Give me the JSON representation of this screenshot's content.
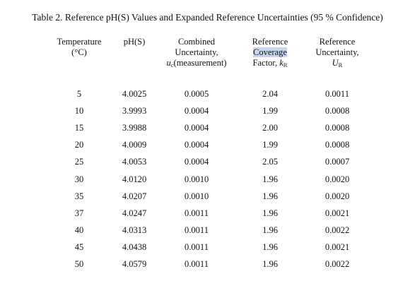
{
  "caption": "Table 2.  Reference pH(S) Values and Expanded Reference Uncertainties (95 % Confidence)",
  "headers": {
    "temperature": [
      "Temperature",
      "(°C)"
    ],
    "phs": [
      "pH(S)"
    ],
    "combined": [
      "Combined",
      "Uncertainty,",
      "(measurement)"
    ],
    "combined_symbol": "u",
    "combined_symbol_sub": "c",
    "coverage": [
      "Reference",
      "Coverage",
      "Factor, "
    ],
    "coverage_symbol": "k",
    "coverage_symbol_sub": "R",
    "expanded": [
      "Reference",
      "Uncertainty,"
    ],
    "expanded_symbol": "U",
    "expanded_symbol_sub": "R"
  },
  "rows": [
    {
      "temperature": "5",
      "phs": "4.0025",
      "combined": "0.0005",
      "coverage": "2.04",
      "expanded": "0.0011"
    },
    {
      "temperature": "10",
      "phs": "3.9993",
      "combined": "0.0004",
      "coverage": "1.99",
      "expanded": "0.0008"
    },
    {
      "temperature": "15",
      "phs": "3.9988",
      "combined": "0.0004",
      "coverage": "2.00",
      "expanded": "0.0008"
    },
    {
      "temperature": "20",
      "phs": "4.0009",
      "combined": "0.0004",
      "coverage": "1.99",
      "expanded": "0.0008"
    },
    {
      "temperature": "25",
      "phs": "4.0053",
      "combined": "0.0004",
      "coverage": "2.05",
      "expanded": "0.0007"
    },
    {
      "temperature": "30",
      "phs": "4.0120",
      "combined": "0.0010",
      "coverage": "1.96",
      "expanded": "0.0020"
    },
    {
      "temperature": "35",
      "phs": "4.0207",
      "combined": "0.0010",
      "coverage": "1.96",
      "expanded": "0.0020"
    },
    {
      "temperature": "37",
      "phs": "4.0247",
      "combined": "0.0011",
      "coverage": "1.96",
      "expanded": "0.0021"
    },
    {
      "temperature": "40",
      "phs": "4.0313",
      "combined": "0.0011",
      "coverage": "1.96",
      "expanded": "0.0022"
    },
    {
      "temperature": "45",
      "phs": "4.0438",
      "combined": "0.0011",
      "coverage": "1.96",
      "expanded": "0.0021"
    },
    {
      "temperature": "50",
      "phs": "4.0579",
      "combined": "0.0011",
      "coverage": "1.96",
      "expanded": "0.0022"
    }
  ]
}
